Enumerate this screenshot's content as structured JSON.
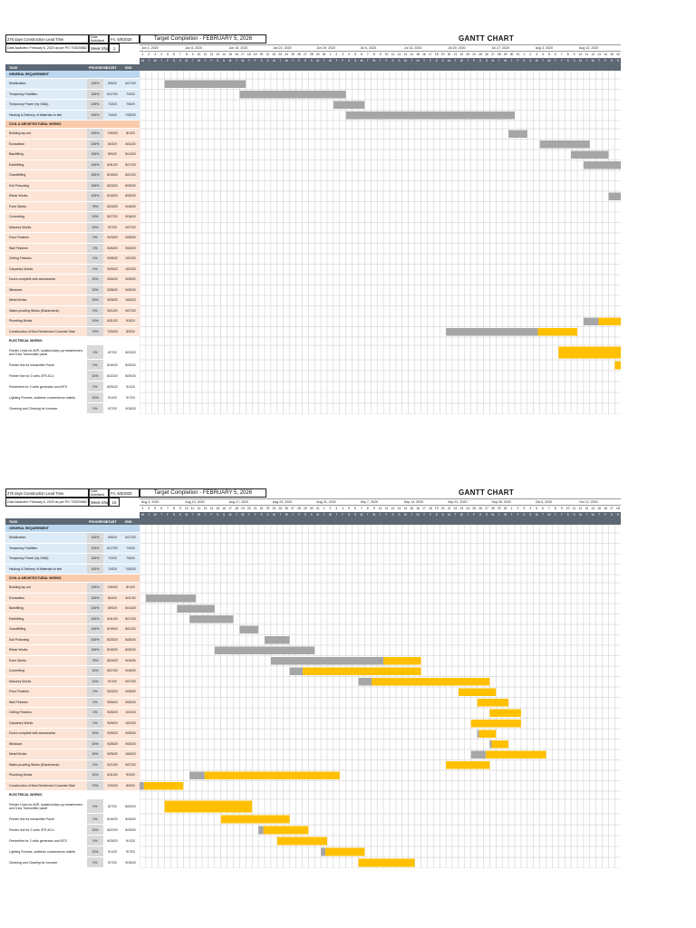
{
  "header": {
    "project": "275 days Construction Lead Time",
    "mobilized_label": "Date Mobilized",
    "mobilized_value": "Fri, 6/5/2020",
    "awarded": "Date Awarded: February 6, 2020 as per PO 703020882",
    "week_label": "Week Shown",
    "target": "Target Completion - FEBRUARY 5, 2026",
    "gantt_title": "GANTT CHART",
    "columns": {
      "task": "TASK",
      "progress": "PROGRESS",
      "start": "START",
      "end": "END"
    },
    "day_letters": [
      "M",
      "T",
      "W",
      "T",
      "F",
      "S",
      "S"
    ]
  },
  "colors": {
    "done": "#a6a6a6",
    "remaining": "#ffc000",
    "header_dark": "#5d6875",
    "general": "#ddebf7",
    "civil": "#fce4d6",
    "general_cat": "#bdd7ee",
    "civil_cat": "#f8cbad"
  },
  "chart_data": {
    "type": "gantt",
    "title": "GANTT CHART",
    "rows": [
      {
        "kind": "cat",
        "group": "gen",
        "name": "GENERAL REQUIREMENT"
      },
      {
        "kind": "task",
        "group": "gen",
        "name": "Mobilization",
        "progress": "100%",
        "start": "6/5/20",
        "end": "6/17/20"
      },
      {
        "kind": "task",
        "group": "gen",
        "name": "Temporary Facilities",
        "progress": "100%",
        "start": "6/17/20",
        "end": "7/3/20"
      },
      {
        "kind": "task",
        "group": "gen",
        "name": "Temporary Power (by GMA)",
        "progress": "100%",
        "start": "7/2/20",
        "end": "7/6/20"
      },
      {
        "kind": "task",
        "group": "gen",
        "name": "Hauling & Delivery of Materials to site",
        "progress": "100%",
        "start": "7/4/20",
        "end": "7/30/20"
      },
      {
        "kind": "cat",
        "group": "civ",
        "name": "CIVIL & ARCHITECTURAL WORKS"
      },
      {
        "kind": "task",
        "group": "civ",
        "name": "Building lay-out",
        "progress": "100%",
        "start": "7/30/20",
        "end": "8/1/20"
      },
      {
        "kind": "task",
        "group": "civ",
        "name": "Excavation",
        "progress": "100%",
        "start": "8/4/20",
        "end": "8/11/20"
      },
      {
        "kind": "task",
        "group": "civ",
        "name": "Backfilling",
        "progress": "100%",
        "start": "8/9/20",
        "end": "8/14/20"
      },
      {
        "kind": "task",
        "group": "civ",
        "name": "Earthfilling",
        "progress": "100%",
        "start": "8/11/20",
        "end": "8/17/20"
      },
      {
        "kind": "task",
        "group": "civ",
        "name": "Gravelfilling",
        "progress": "100%",
        "start": "8/19/20",
        "end": "8/21/20"
      },
      {
        "kind": "task",
        "group": "civ",
        "name": "Soil Poisoning",
        "progress": "100%",
        "start": "8/23/20",
        "end": "8/26/20"
      },
      {
        "kind": "task",
        "group": "civ",
        "name": "Rebar Works",
        "progress": "100%",
        "start": "8/15/20",
        "end": "8/30/20"
      },
      {
        "kind": "task",
        "group": "civ",
        "name": "Form Works",
        "progress": "75%",
        "start": "8/24/20",
        "end": "9/16/20"
      },
      {
        "kind": "task",
        "group": "civ",
        "name": "Concreting",
        "progress": "10%",
        "start": "8/27/20",
        "end": "9/16/20"
      },
      {
        "kind": "task",
        "group": "civ",
        "name": "Masonry Works",
        "progress": "10%",
        "start": "9/7/20",
        "end": "9/27/20"
      },
      {
        "kind": "task",
        "group": "civ",
        "name": "Floor Finishes",
        "progress": "0%",
        "start": "9/23/20",
        "end": "9/28/20"
      },
      {
        "kind": "task",
        "group": "civ",
        "name": "Wall Finishes",
        "progress": "0%",
        "start": "9/26/20",
        "end": "9/30/20"
      },
      {
        "kind": "task",
        "group": "civ",
        "name": "Ceiling Finishes",
        "progress": "0%",
        "start": "9/28/20",
        "end": "10/2/20"
      },
      {
        "kind": "task",
        "group": "civ",
        "name": "Carpentry Works",
        "progress": "0%",
        "start": "9/25/20",
        "end": "10/2/20"
      },
      {
        "kind": "task",
        "group": "civ",
        "name": "Doors complete with accessories",
        "progress": "10%",
        "start": "9/26/20",
        "end": "9/28/20"
      },
      {
        "kind": "task",
        "group": "civ",
        "name": "Windows",
        "progress": "10%",
        "start": "9/28/20",
        "end": "9/30/20"
      },
      {
        "kind": "task",
        "group": "civ",
        "name": "Metal Works",
        "progress": "20%",
        "start": "9/25/20",
        "end": "10/6/20"
      },
      {
        "kind": "task",
        "group": "civ",
        "name": "Water-proofing Works (Elastomeric)",
        "progress": "0%",
        "start": "9/21/20",
        "end": "9/27/20"
      },
      {
        "kind": "task",
        "group": "civ",
        "name": "Plumbing Works",
        "progress": "10%",
        "start": "8/11/20",
        "end": "9/3/20"
      },
      {
        "kind": "task",
        "group": "civ",
        "name": "Construction of New Reinforced Concrete Stair",
        "progress": "70%",
        "start": "7/20/20",
        "end": "8/9/20"
      },
      {
        "kind": "cat",
        "group": "ele",
        "name": "ELECTRICAL WORKS"
      },
      {
        "kind": "task",
        "group": "ele",
        "name": "Feeder Lines for AVR, isolation/step-up transformers and 5-kw Transmitter panel",
        "progress": "0%",
        "start": "8/7/20",
        "end": "8/20/20"
      },
      {
        "kind": "task",
        "group": "ele",
        "name": "Feeder line for transmitter Panel",
        "progress": "0%",
        "start": "8/16/20",
        "end": "8/26/20"
      },
      {
        "kind": "task",
        "group": "ele",
        "name": "Feeder line for 2 units 3TR ACU",
        "progress": "10%",
        "start": "8/22/20",
        "end": "8/29/20"
      },
      {
        "kind": "task",
        "group": "ele",
        "name": "Feederline for 2 units generator and MTS",
        "progress": "0%",
        "start": "8/25/20",
        "end": "9/1/20"
      },
      {
        "kind": "task",
        "group": "ele",
        "name": "Lighting Fixtures, switches convenience outlets",
        "progress": "10%",
        "start": "9/1/20",
        "end": "9/7/20"
      },
      {
        "kind": "task",
        "group": "ele",
        "name": "Cleaning and Clearing for turnover",
        "progress": "0%",
        "start": "9/7/20",
        "end": "9/15/20"
      }
    ],
    "charts": [
      {
        "week_shown": "1",
        "week_labels": [
          "Jun 1, 2020",
          "Jun 8, 2020",
          "Jun 15, 2020",
          "Jun 22, 2020",
          "Jun 29, 2020",
          "Jul 6, 2020",
          "Jul 13, 2020",
          "Jul 20, 2020",
          "Jul 27, 2020",
          "Aug 3, 2020",
          "Aug 10, 2020"
        ],
        "day_numbers": [
          "1",
          "2",
          "3",
          "4",
          "5",
          "6",
          "7",
          "8",
          "9",
          "10",
          "11",
          "12",
          "13",
          "14",
          "15",
          "16",
          "17",
          "18",
          "19",
          "20",
          "21",
          "22",
          "23",
          "24",
          "25",
          "26",
          "27",
          "28",
          "29",
          "30",
          "1",
          "2",
          "3",
          "4",
          "5",
          "6",
          "7",
          "8",
          "9",
          "10",
          "11",
          "12",
          "13",
          "14",
          "15",
          "16",
          "17",
          "18",
          "19",
          "20",
          "21",
          "22",
          "23",
          "24",
          "25",
          "26",
          "27",
          "28",
          "29",
          "30",
          "31",
          "1",
          "2",
          "3",
          "4",
          "5",
          "6",
          "7",
          "8",
          "9",
          "10",
          "11",
          "12",
          "13",
          "14",
          "15",
          "16"
        ]
      },
      {
        "week_shown": "10",
        "week_labels": [
          "Aug 3, 2020",
          "Aug 10, 2020",
          "Aug 17, 2020",
          "Aug 24, 2020",
          "Aug 31, 2020",
          "Sep 7, 2020",
          "Sep 14, 2020",
          "Sep 21, 2020",
          "Sep 28, 2020",
          "Oct 5, 2020",
          "Oct 12, 2020"
        ],
        "day_numbers": [
          "3",
          "4",
          "5",
          "6",
          "7",
          "8",
          "9",
          "10",
          "11",
          "12",
          "13",
          "14",
          "15",
          "16",
          "17",
          "18",
          "19",
          "20",
          "21",
          "22",
          "23",
          "24",
          "25",
          "26",
          "27",
          "28",
          "29",
          "30",
          "31",
          "1",
          "2",
          "3",
          "4",
          "5",
          "6",
          "7",
          "8",
          "9",
          "10",
          "11",
          "12",
          "13",
          "14",
          "15",
          "16",
          "17",
          "18",
          "19",
          "20",
          "21",
          "22",
          "23",
          "24",
          "25",
          "26",
          "27",
          "28",
          "29",
          "30",
          "1",
          "2",
          "3",
          "4",
          "5",
          "6",
          "7",
          "8",
          "9",
          "10",
          "11",
          "12",
          "13",
          "14",
          "15",
          "16",
          "17",
          "18"
        ]
      }
    ]
  }
}
